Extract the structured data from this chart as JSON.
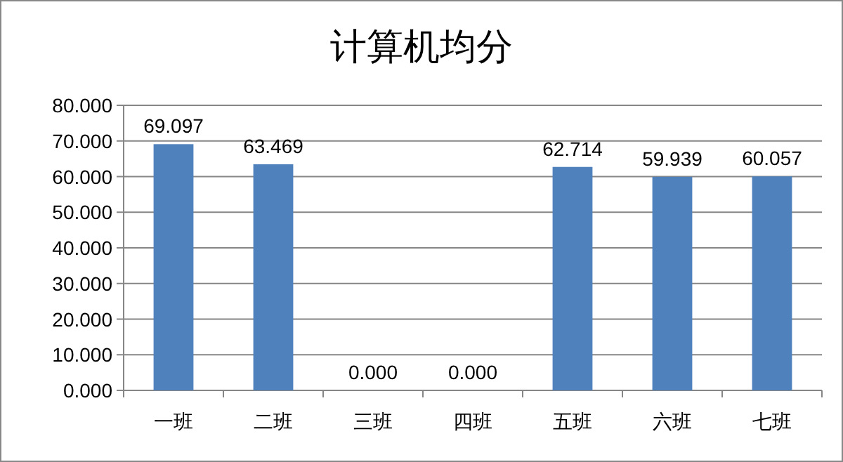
{
  "chart_data": {
    "type": "bar",
    "title": "计算机均分",
    "categories": [
      "一班",
      "二班",
      "三班",
      "四班",
      "五班",
      "六班",
      "七班"
    ],
    "values": [
      69.097,
      63.469,
      0.0,
      0.0,
      62.714,
      59.939,
      60.057
    ],
    "value_labels": [
      "69.097",
      "63.469",
      "0.000",
      "0.000",
      "62.714",
      "59.939",
      "60.057"
    ],
    "color": "#4f81bd",
    "grid": "y",
    "ylim": [
      0,
      80
    ],
    "yticks": [
      {
        "value": 0,
        "label": "0.000"
      },
      {
        "value": 10,
        "label": "10.000"
      },
      {
        "value": 20,
        "label": "20.000"
      },
      {
        "value": 30,
        "label": "30.000"
      },
      {
        "value": 40,
        "label": "40.000"
      },
      {
        "value": 50,
        "label": "50.000"
      },
      {
        "value": 60,
        "label": "60.000"
      },
      {
        "value": 70,
        "label": "70.000"
      },
      {
        "value": 80,
        "label": "80.000"
      }
    ]
  }
}
